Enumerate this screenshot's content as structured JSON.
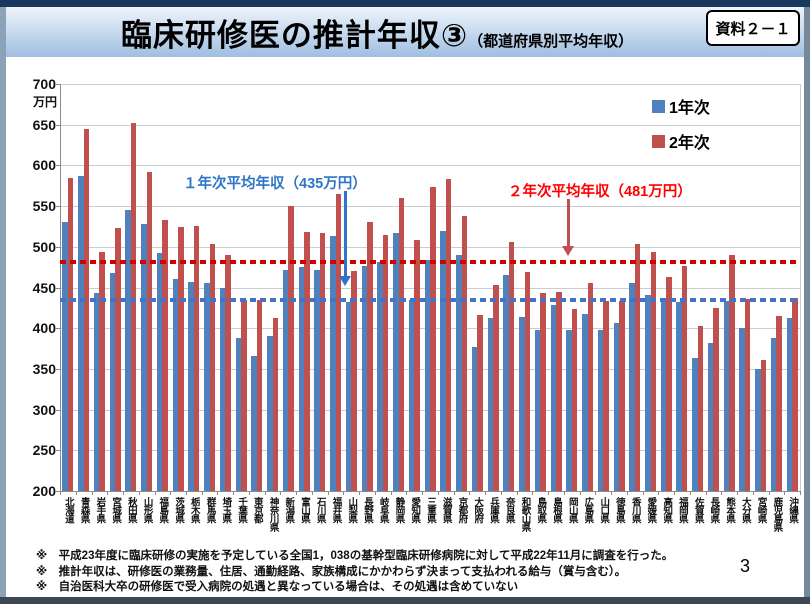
{
  "frame": {
    "doc_label": "資料２－１"
  },
  "header": {
    "title": "臨床研修医の推計年収③",
    "subtitle": "（都道府県別平均年収）"
  },
  "chart_data": {
    "type": "bar",
    "title": "臨床研修医の推計年収（都道府県別平均年収）",
    "unit_label": "万円",
    "ylim": [
      200,
      700
    ],
    "y_ticks": [
      700,
      650,
      600,
      550,
      500,
      450,
      400,
      350,
      300,
      250,
      200
    ],
    "grid": true,
    "legend_position": "top-right",
    "categories": [
      "北海道",
      "青森県",
      "岩手県",
      "宮城県",
      "秋田県",
      "山形県",
      "福島県",
      "茨城県",
      "栃木県",
      "群馬県",
      "埼玉県",
      "千葉県",
      "東京都",
      "神奈川県",
      "新潟県",
      "富山県",
      "石川県",
      "福井県",
      "山梨県",
      "長野県",
      "岐阜県",
      "静岡県",
      "愛知県",
      "三重県",
      "滋賀県",
      "京都府",
      "大阪府",
      "兵庫県",
      "奈良県",
      "和歌山県",
      "鳥取県",
      "島根県",
      "岡山県",
      "広島県",
      "山口県",
      "徳島県",
      "香川県",
      "愛媛県",
      "高知県",
      "福岡県",
      "佐賀県",
      "長崎県",
      "熊本県",
      "大分県",
      "宮崎県",
      "鹿児島県",
      "沖縄県"
    ],
    "series": [
      {
        "name": "1年次",
        "color": "#4F81BD",
        "values": [
          530,
          587,
          443,
          468,
          545,
          528,
          492,
          460,
          457,
          455,
          449,
          388,
          366,
          390,
          471,
          475,
          472,
          513,
          432,
          477,
          482,
          517,
          435,
          484,
          519,
          490,
          377,
          413,
          465,
          414,
          398,
          428,
          398,
          417,
          398,
          407,
          456,
          441,
          432,
          432,
          364,
          382,
          433,
          400,
          350,
          388,
          413
        ]
      },
      {
        "name": "2年次",
        "color": "#C0504D",
        "values": [
          585,
          645,
          494,
          523,
          652,
          592,
          533,
          524,
          526,
          503,
          490,
          435,
          435,
          413,
          550,
          518,
          517,
          565,
          470,
          531,
          515,
          560,
          509,
          574,
          583,
          538,
          416,
          453,
          506,
          469,
          443,
          445,
          424,
          455,
          434,
          434,
          503,
          494,
          463,
          477,
          403,
          425,
          490,
          436,
          361,
          415,
          437
        ]
      }
    ],
    "average_lines": [
      {
        "series": "1年次",
        "label": "１年次平均年収（435万円）",
        "value": 435,
        "line_color": "#4472C4",
        "text_color": "#2E75C9"
      },
      {
        "series": "2年次",
        "label": "２年次平均年収（481万円）",
        "value": 481,
        "line_color": "#D00000",
        "text_color": "#FF0000"
      }
    ]
  },
  "footnotes": [
    "※　平成23年度に臨床研修の実施を予定している全国1，038の基幹型臨床研修病院に対して平成22年11月に調査を行った。",
    "※　推計年収は、研修医の業務量、住居、通勤経路、家族構成にかかわらず決まって支払われる給与（賞与含む）。",
    "※　自治医科大卒の研修医で受入病院の処遇と異なっている場合は、その処遇は含めていない"
  ],
  "page_number": "3"
}
